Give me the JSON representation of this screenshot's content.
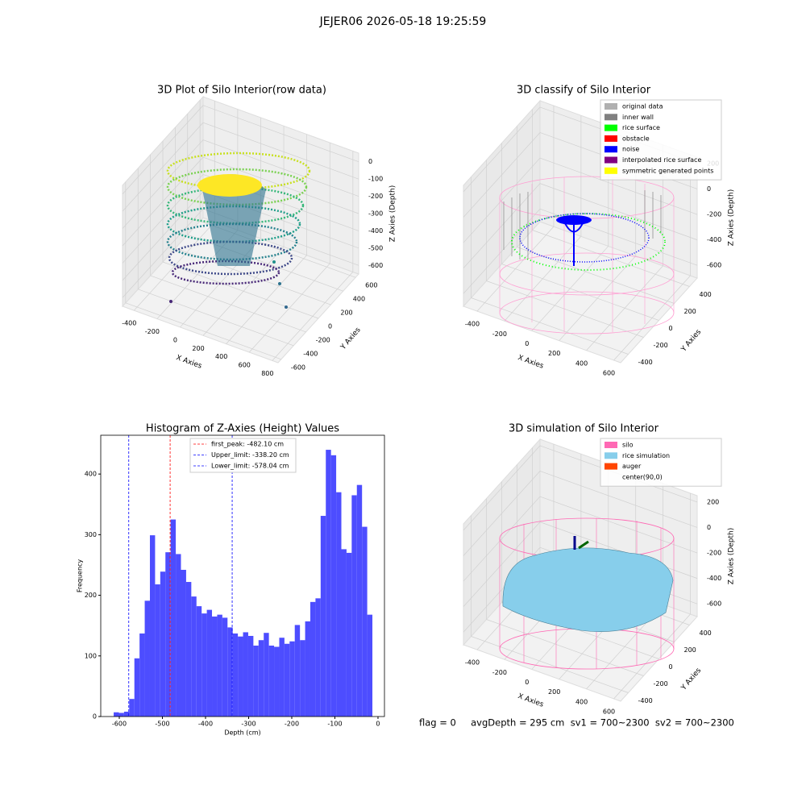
{
  "title": "JEJER06 2026-05-18 19:25:59",
  "status": "flag = 0     avgDepth = 295 cm  sv1 = 700~2300  sv2 = 700~2300",
  "chart_data": [
    {
      "type": "scatter3d",
      "title": "3D Plot of Silo Interior(row data)",
      "xlabel": "X Axies",
      "ylabel": "Y Axies",
      "zlabel": "Z Axies (Depth)",
      "xlim": [
        -500,
        850
      ],
      "ylim": [
        -650,
        650
      ],
      "zlim": [
        -650,
        50
      ],
      "xticks": [
        -400,
        -200,
        0,
        200,
        400,
        600,
        800
      ],
      "yticks": [
        -600,
        -400,
        -200,
        0,
        200,
        400,
        600
      ],
      "zticks": [
        -600,
        -500,
        -400,
        -300,
        -200,
        -100,
        0
      ]
    },
    {
      "type": "scatter3d",
      "title": "3D classify of Silo Interior",
      "xlabel": "X Axies",
      "ylabel": "Y Axies",
      "zlabel": "Z Axies (Depth)",
      "xlim": [
        -500,
        650
      ],
      "ylim": [
        -500,
        500
      ],
      "zlim": [
        -700,
        250
      ],
      "xticks": [
        -400,
        -200,
        0,
        200,
        400,
        600
      ],
      "yticks": [
        -400,
        -200,
        0,
        200,
        400
      ],
      "zticks": [
        -600,
        -400,
        -200,
        0,
        200
      ],
      "legend": [
        {
          "name": "original data",
          "color": "#b0b0b0"
        },
        {
          "name": "inner wall",
          "color": "#808080"
        },
        {
          "name": "rice surface",
          "color": "#00ff00"
        },
        {
          "name": "obstacle",
          "color": "#ff0000"
        },
        {
          "name": "noise",
          "color": "#0000ff"
        },
        {
          "name": "interpolated rice surface",
          "color": "#800080"
        },
        {
          "name": "symmetric generated points",
          "color": "#ffff00"
        }
      ]
    },
    {
      "type": "histogram",
      "title": "Histogram of Z-Axies (Height) Values",
      "xlabel": "Depth (cm)",
      "ylabel": "Frequency",
      "color": "#4d4dff",
      "xlim": [
        -643,
        15
      ],
      "ylim": [
        0,
        464
      ],
      "xticks": [
        -600,
        -500,
        -400,
        -300,
        -200,
        -100,
        0
      ],
      "yticks": [
        0,
        100,
        200,
        300,
        400
      ],
      "bins": [
        -613,
        -601,
        -589,
        -577,
        -565,
        -553,
        -541,
        -529,
        -517,
        -505,
        -493,
        -481,
        -469,
        -457,
        -445,
        -433,
        -421,
        -409,
        -397,
        -385,
        -373,
        -361,
        -349,
        -337,
        -325,
        -313,
        -301,
        -289,
        -277,
        -265,
        -253,
        -241,
        -229,
        -217,
        -205,
        -193,
        -181,
        -169,
        -157,
        -145,
        -133,
        -121,
        -109,
        -97,
        -85,
        -73,
        -61,
        -49,
        -37,
        -25,
        -13
      ],
      "values": [
        7,
        6,
        8,
        29,
        96,
        137,
        191,
        299,
        218,
        239,
        271,
        325,
        268,
        242,
        222,
        198,
        182,
        170,
        176,
        165,
        168,
        163,
        147,
        137,
        132,
        139,
        133,
        117,
        126,
        138,
        117,
        115,
        130,
        120,
        124,
        151,
        126,
        157,
        189,
        195,
        331,
        440,
        431,
        370,
        276,
        270,
        365,
        382,
        313,
        168
      ],
      "lines": [
        {
          "label": "first_peak: -482.10 cm",
          "value": -482.1,
          "color": "#ff0000"
        },
        {
          "label": "Upper_limit: -338.20 cm",
          "value": -338.2,
          "color": "#0000ff"
        },
        {
          "label": "Lower_limit: -578.04 cm",
          "value": -578.04,
          "color": "#0000ff"
        }
      ]
    },
    {
      "type": "surface3d",
      "title": "3D simulation of Silo Interior",
      "xlabel": "X Axies",
      "ylabel": "Y Axies",
      "zlabel": "Z Axies (Depth)",
      "xlim": [
        -500,
        650
      ],
      "ylim": [
        -500,
        500
      ],
      "zlim": [
        -700,
        250
      ],
      "xticks": [
        -400,
        -200,
        0,
        200,
        400,
        600
      ],
      "yticks": [
        -400,
        -200,
        0,
        200,
        400
      ],
      "zticks": [
        -600,
        -400,
        -200,
        0,
        200
      ],
      "legend": [
        {
          "name": "silo",
          "color": "#ff69b4"
        },
        {
          "name": "rice simulation",
          "color": "#87ceeb"
        },
        {
          "name": "auger",
          "color": "#ff4500"
        },
        {
          "name": "center(90,0)",
          "color": null
        }
      ]
    }
  ]
}
